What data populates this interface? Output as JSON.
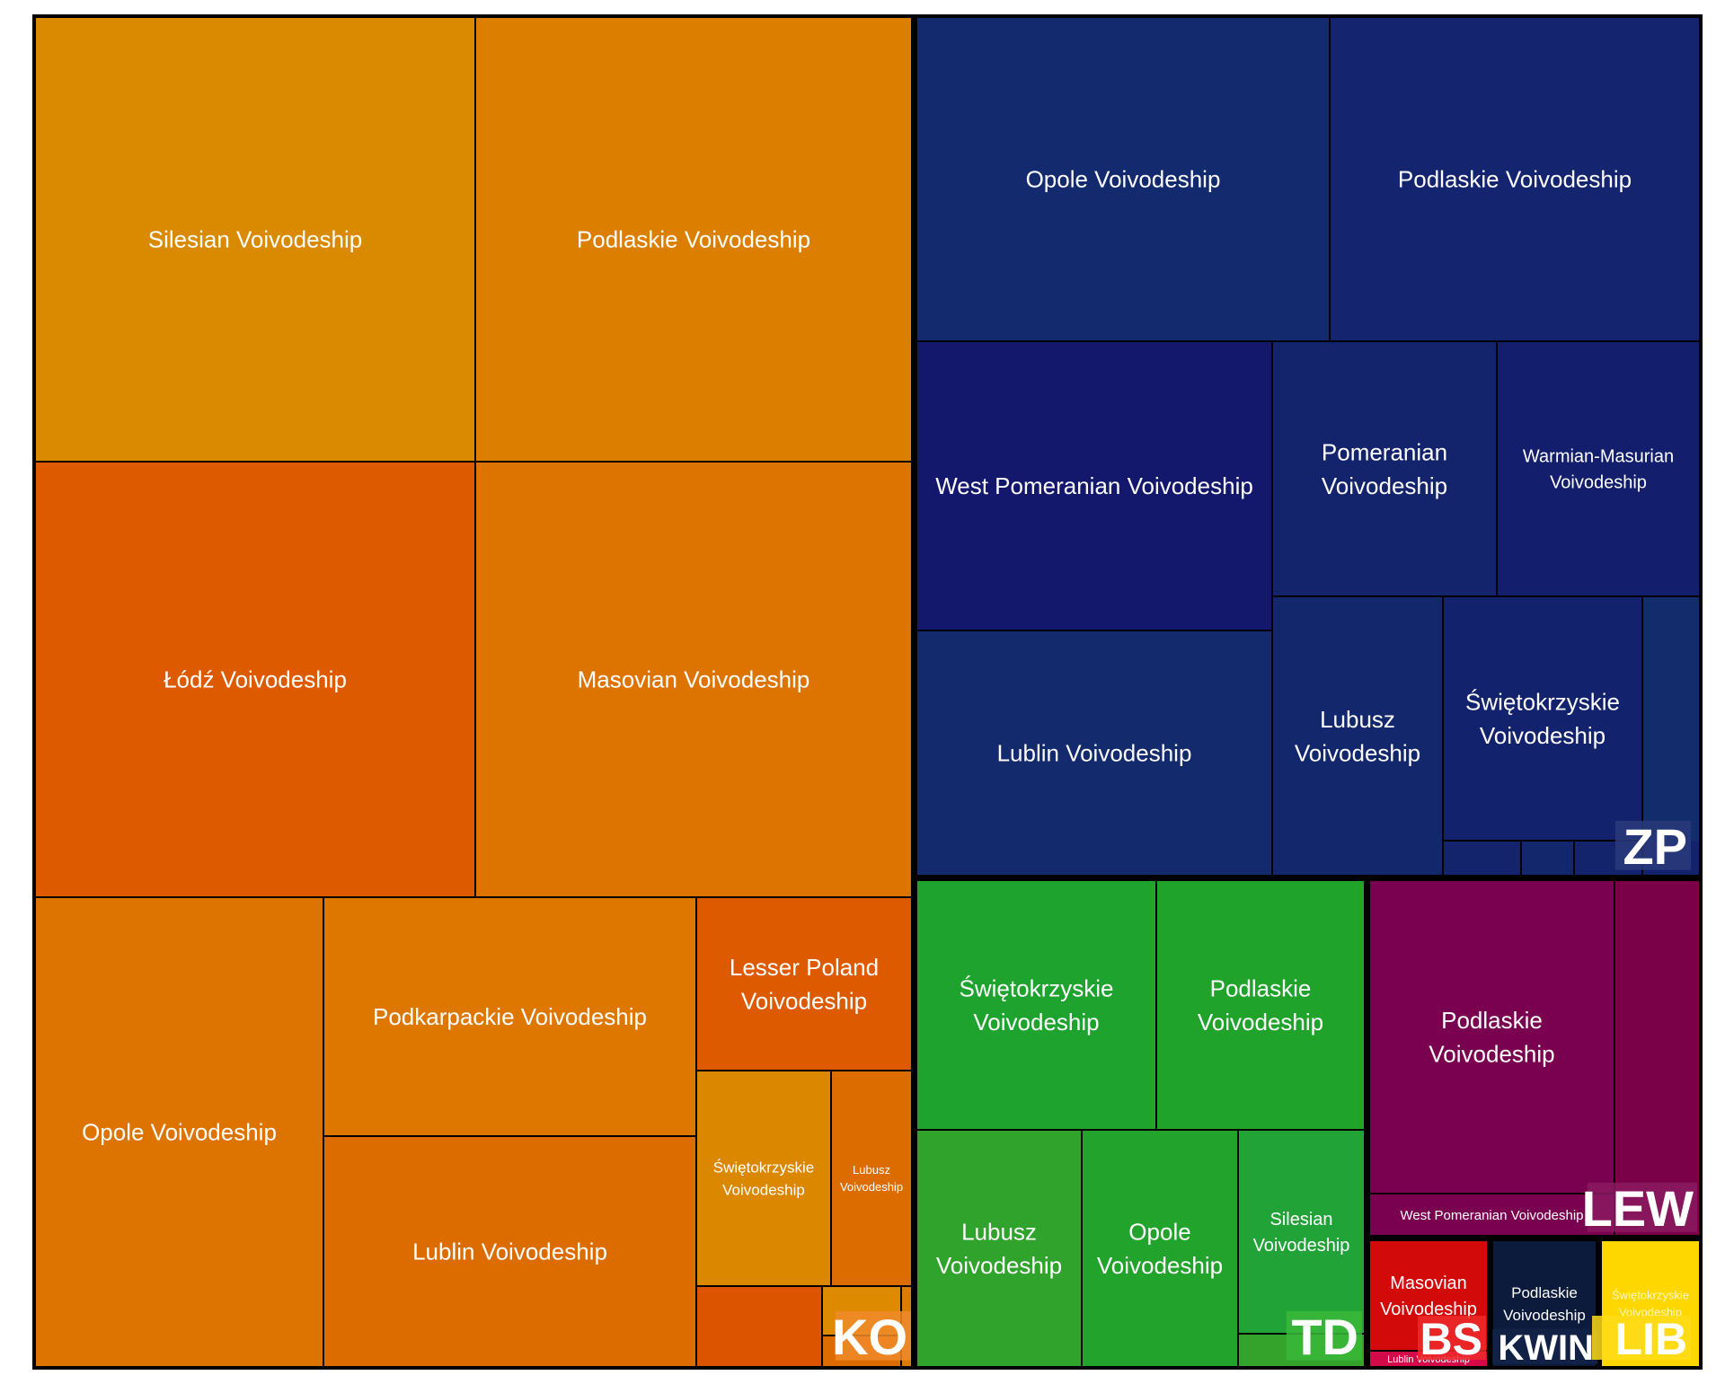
{
  "chart_data": {
    "type": "treemap",
    "title": "",
    "groups": [
      {
        "name": "KO",
        "label": "KO",
        "color": "#e07a10",
        "regions": [
          {
            "name": "Silesian Voivodeship",
            "label": "Silesian Voivodeship",
            "value": 8.0,
            "color": "#d98a00"
          },
          {
            "name": "Podlaskie Voivodeship",
            "label": "Podlaskie Voivodeship",
            "value": 8.0,
            "color": "#dc7f00"
          },
          {
            "name": "Łódź Voivodeship",
            "label": "Łódź Voivodeship",
            "value": 7.9,
            "color": "#dd5a00"
          },
          {
            "name": "Masovian Voivodeship",
            "label": "Masovian Voivodeship",
            "value": 7.9,
            "color": "#dd7300"
          },
          {
            "name": "Opole Voivodeship",
            "label": "Opole Voivodeship",
            "value": 4.5,
            "color": "#dd7300"
          },
          {
            "name": "Podkarpackie Voivodeship",
            "label": "Podkarpackie Voivodeship",
            "value": 3.6,
            "color": "#dd7700"
          },
          {
            "name": "Lublin Voivodeship",
            "label": "Lublin Voivodeship",
            "value": 3.0,
            "color": "#dd6c00"
          },
          {
            "name": "Lesser Poland Voivodeship",
            "label": "Lesser Poland Voivodeship",
            "value": 1.54,
            "color": "#dd5a00"
          },
          {
            "name": "Świętokrzyskie Voivodeship",
            "label": "Świętokrzyskie Voivodeship",
            "value": 1.17,
            "color": "#db8800"
          },
          {
            "name": "Lubusz Voivodeship",
            "label": "Lubusz Voivodeship",
            "value": 0.73,
            "color": "#dd6c00"
          },
          {
            "name": "KO region 11",
            "label": "",
            "value": 0.41,
            "color": "#dd5400"
          },
          {
            "name": "KO region 12",
            "label": "",
            "value": 0.26,
            "color": "#dd8a00"
          },
          {
            "name": "KO region 13",
            "label": "",
            "value": 0.05,
            "color": "#dd6c00"
          },
          {
            "name": "KO region 14",
            "label": "",
            "value": 0.07,
            "color": "#dd7a00"
          }
        ]
      },
      {
        "name": "ZP",
        "label": "ZP",
        "color": "#1a2a75",
        "regions": [
          {
            "name": "Opole Voivodeship",
            "label": "Opole Voivodeship",
            "value": 5.4,
            "color": "#142a6e"
          },
          {
            "name": "Podlaskie Voivodeship",
            "label": "Podlaskie Voivodeship",
            "value": 4.8,
            "color": "#14246e"
          },
          {
            "name": "West Pomeranian Voivodeship",
            "label": "West Pomeranian Voivodeship",
            "value": 4.15,
            "color": "#13186c"
          },
          {
            "name": "Lublin Voivodeship",
            "label": "Lublin Voivodeship",
            "value": 3.6,
            "color": "#132a6c"
          },
          {
            "name": "Pomeranian Voivodeship",
            "label": "Pomeranian Voivodeship",
            "value": 2.3,
            "color": "#13246c"
          },
          {
            "name": "Warmian-Masurian Voivodeship",
            "label": "Warmian-Masurian Voivodeship",
            "value": 2.05,
            "color": "#131f6c"
          },
          {
            "name": "Lubusz Voivodeship",
            "label": "Lubusz Voivodeship",
            "value": 1.7,
            "color": "#13286c"
          },
          {
            "name": "Świętokrzyskie Voivodeship",
            "label": "Świętokrzyskie Voivodeship",
            "value": 1.55,
            "color": "#13226c"
          },
          {
            "name": "ZP region 9",
            "label": "",
            "value": 0.6,
            "color": "#132d6c"
          },
          {
            "name": "ZP region 10",
            "label": "",
            "value": 0.22,
            "color": "#13246c"
          },
          {
            "name": "ZP region 11",
            "label": "",
            "value": 0.15,
            "color": "#13286c"
          },
          {
            "name": "ZP region 12",
            "label": "",
            "value": 0.15,
            "color": "#13246c"
          },
          {
            "name": "ZP region 13",
            "label": "",
            "value": 0.1,
            "color": "#13226c"
          }
        ]
      },
      {
        "name": "TD",
        "label": "TD",
        "color": "#22aa33",
        "regions": [
          {
            "name": "Świętokrzyskie Voivodeship",
            "label": "Świętokrzyskie Voivodeship",
            "value": 2.6,
            "color": "#1fa32f"
          },
          {
            "name": "Podlaskie Voivodeship",
            "label": "Podlaskie Voivodeship",
            "value": 2.3,
            "color": "#1fa32b"
          },
          {
            "name": "Lubusz Voivodeship",
            "label": "Lubusz Voivodeship",
            "value": 1.7,
            "color": "#2fa32b"
          },
          {
            "name": "Opole Voivodeship",
            "label": "Opole Voivodeship",
            "value": 1.6,
            "color": "#22a32b"
          },
          {
            "name": "Silesian Voivodeship",
            "label": "Silesian Voivodeship",
            "value": 1.15,
            "color": "#22a338"
          },
          {
            "name": "TD region 6",
            "label": "",
            "value": 0.2,
            "color": "#33a32b"
          }
        ]
      },
      {
        "name": "LEW",
        "label": "LEW",
        "color": "#7a0050",
        "regions": [
          {
            "name": "Podlaskie Voivodeship",
            "label": "Podlaskie Voivodeship",
            "value": 3.0,
            "color": "#7a0050"
          },
          {
            "name": "West Pomeranian Voivodeship",
            "label": "West Pomeranian Voivodeship",
            "value": 0.45,
            "color": "#7a0050"
          },
          {
            "name": "LEW region 3",
            "label": "",
            "value": 0.92,
            "color": "#7a0048"
          }
        ]
      },
      {
        "name": "BS",
        "label": "BS",
        "color": "#dd0a0a",
        "regions": [
          {
            "name": "Masovian Voivodeship",
            "label": "Masovian Voivodeship",
            "value": 0.88,
            "color": "#d20a0a"
          },
          {
            "name": "Lublin Voivodeship",
            "label": "Lublin Voivodeship",
            "value": 0.06,
            "color": "#d20a4a"
          }
        ]
      },
      {
        "name": "KWIN",
        "label": "KWIN",
        "color": "#0a1a3a",
        "regions": [
          {
            "name": "Podlaskie Voivodeship",
            "label": "Podlaskie Voivodeship",
            "value": 0.84,
            "color": "#0c1a3c"
          }
        ]
      },
      {
        "name": "LIB",
        "label": "LIB",
        "color": "#ffd700",
        "regions": [
          {
            "name": "Świętokrzyskie Voivodeship",
            "label": "Świętokrzyskie Voivodeship",
            "value": 0.83,
            "color": "#ffd700"
          }
        ]
      }
    ]
  }
}
